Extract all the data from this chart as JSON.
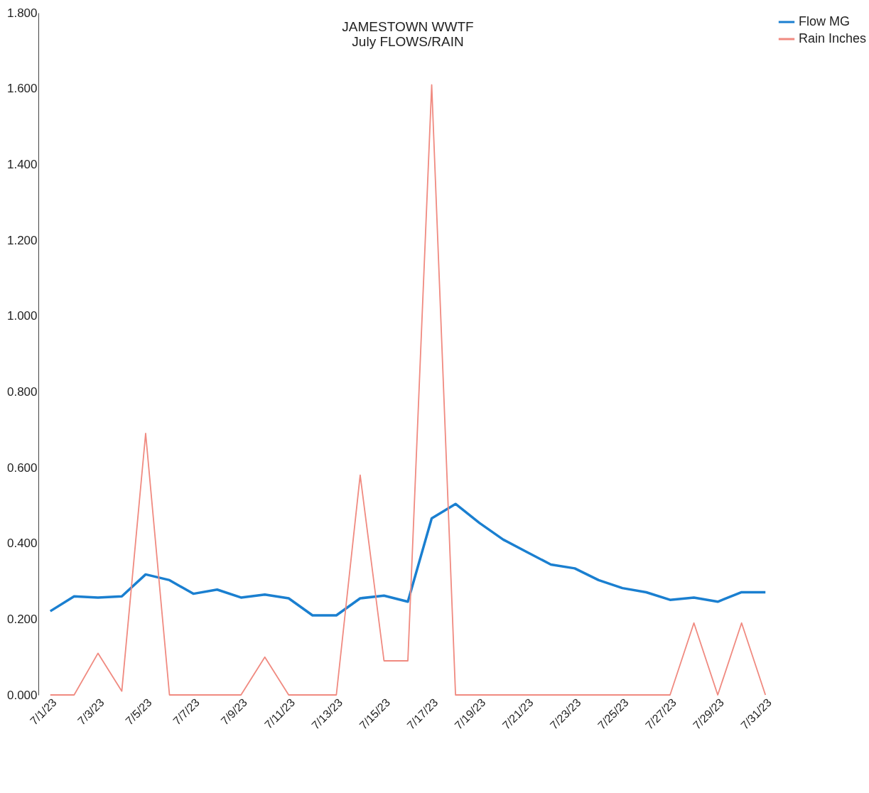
{
  "chart_data": {
    "type": "line",
    "title": [
      "JAMESTOWN WWTF",
      "July  FLOWS/RAIN"
    ],
    "categories": [
      "7/1/23",
      null,
      "7/3/23",
      null,
      "7/5/23",
      null,
      "7/7/23",
      null,
      "7/9/23",
      null,
      "7/11/23",
      null,
      "7/13/23",
      null,
      "7/15/23",
      null,
      "7/17/23",
      null,
      "7/19/23",
      null,
      "7/21/23",
      null,
      "7/23/23",
      null,
      "7/25/23",
      null,
      "7/27/23",
      null,
      "7/29/23",
      null,
      "7/31/23"
    ],
    "series": [
      {
        "name": "Flow MG",
        "color": "#1a7fd0",
        "values": [
          0.221,
          0.26,
          0.257,
          0.26,
          0.318,
          0.303,
          0.267,
          0.278,
          0.257,
          0.265,
          0.255,
          0.21,
          0.21,
          0.255,
          0.262,
          0.246,
          0.466,
          0.504,
          0.454,
          0.41,
          0.377,
          0.344,
          0.334,
          0.303,
          0.282,
          0.271,
          0.251,
          0.257,
          0.246,
          0.271,
          0.271
        ]
      },
      {
        "name": "Rain Inches",
        "color": "#f08a80",
        "values": [
          0,
          0,
          0.11,
          0.01,
          0.69,
          0,
          0,
          0,
          0,
          0.1,
          0,
          0,
          0,
          0.58,
          0.09,
          0.09,
          1.61,
          0,
          0,
          0,
          0,
          0,
          0,
          0,
          0,
          0,
          0,
          0.19,
          0,
          0.19,
          0
        ]
      }
    ],
    "ylim": [
      0,
      1.8
    ],
    "yticks": [
      {
        "value": 0,
        "label": "0.000"
      },
      {
        "value": 0.2,
        "label": "0.200"
      },
      {
        "value": 0.4,
        "label": "0.400"
      },
      {
        "value": 0.6,
        "label": "0.600"
      },
      {
        "value": 0.8,
        "label": "0.800"
      },
      {
        "value": 1,
        "label": "1.000"
      },
      {
        "value": 1.2,
        "label": "1.200"
      },
      {
        "value": 1.4,
        "label": "1.400"
      },
      {
        "value": 1.6,
        "label": "1.600"
      },
      {
        "value": 1.8,
        "label": "1.800"
      }
    ],
    "grid": false,
    "legend": "right",
    "marker": "none",
    "line_style": "solid"
  }
}
